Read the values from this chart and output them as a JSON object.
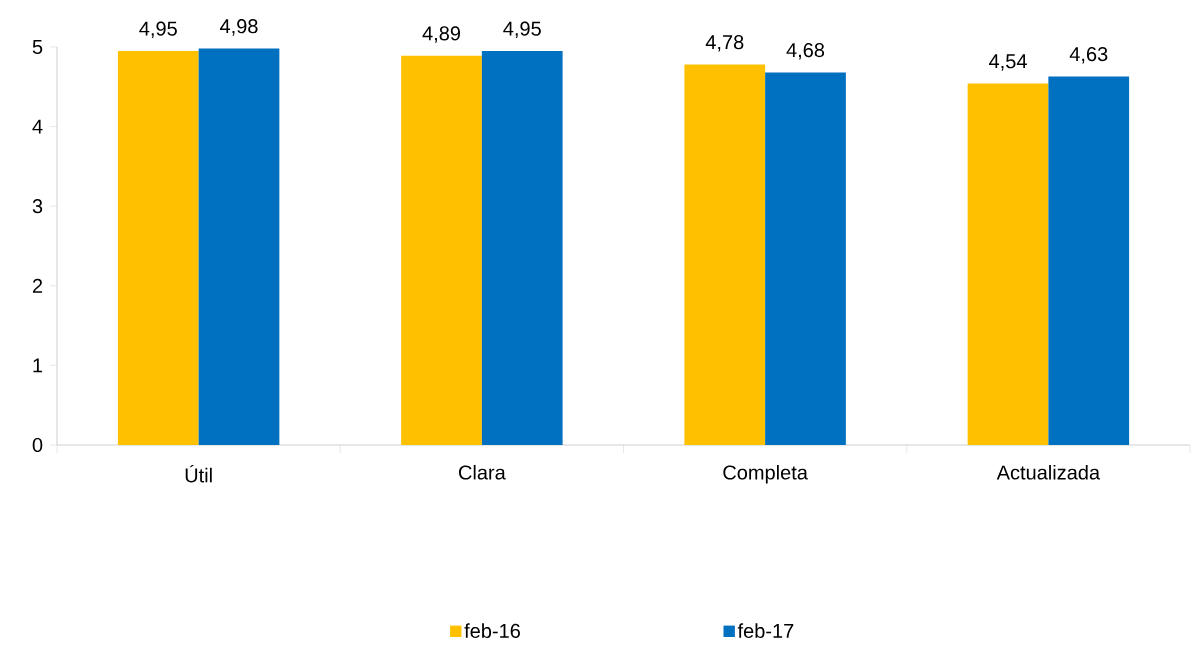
{
  "chart_data": {
    "type": "bar",
    "categories": [
      "Útil",
      "Clara",
      "Completa",
      "Actualizada"
    ],
    "series": [
      {
        "name": "feb-16",
        "color": "#ffc000",
        "values": [
          4.95,
          4.89,
          4.78,
          4.54
        ],
        "value_labels": [
          "4,95",
          "4,89",
          "4,78",
          "4,54"
        ]
      },
      {
        "name": "feb-17",
        "color": "#0070c0",
        "values": [
          4.98,
          4.95,
          4.68,
          4.63
        ],
        "value_labels": [
          "4,98",
          "4,95",
          "4,68",
          "4,63"
        ]
      }
    ],
    "ylim": [
      0,
      5
    ],
    "yticks": [
      0,
      1,
      2,
      3,
      4,
      5
    ],
    "grid": false,
    "legend": "bottom"
  }
}
